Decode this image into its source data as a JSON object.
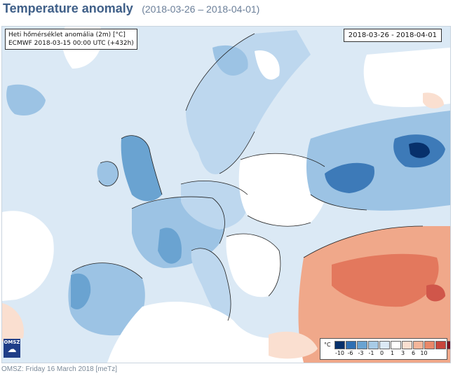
{
  "header": {
    "title": "Temperature anomaly",
    "dates": "(2018-03-26 – 2018-04-01)"
  },
  "map": {
    "info_line1": "Heti hőmérséklet anomália (2m) [°C]",
    "info_line2": "ECMWF 2018-03-15 00:00 UTC (+432h)",
    "date_box": "2018-03-26 - 2018-04-01",
    "logo_text": "OMSZ",
    "legend": {
      "unit": "°C",
      "swatches": [
        "#07306b",
        "#2f6fb3",
        "#6aa3d1",
        "#a8cbe6",
        "#dbe9f5",
        "#ffffff",
        "#fadfd0",
        "#f4b69a",
        "#e98869",
        "#c8453b",
        "#7a1320"
      ],
      "labels": [
        "-10",
        "-6",
        "-3",
        "-1",
        "0",
        "1",
        "3",
        "6",
        "10"
      ]
    },
    "colors": {
      "ocean": "#dbe9f5",
      "weak_cold": "#bdd7ee",
      "cold": "#9cc3e4",
      "strong_cold": "#6aa3d1",
      "very_cold": "#3d7ab8",
      "neutral": "#ffffff",
      "weak_warm": "#fadfd0",
      "warm": "#f0a88a",
      "hot": "#e3785d",
      "very_hot": "#d0564a",
      "border": "#222222"
    }
  },
  "footer": {
    "text": "OMSZ: Friday 16 March 2018  [meTz]"
  }
}
